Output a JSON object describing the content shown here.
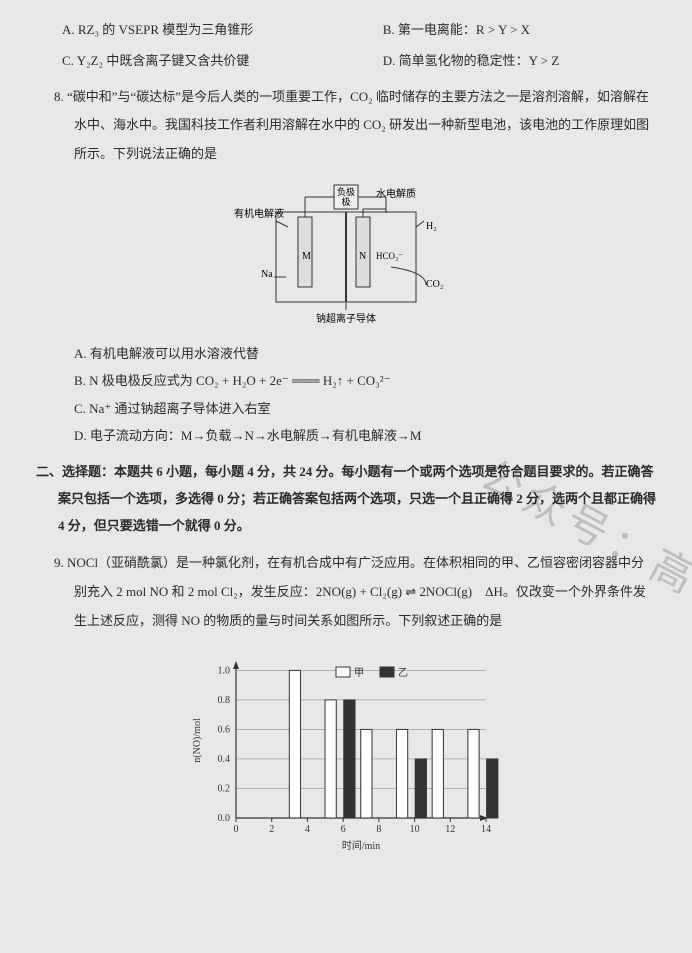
{
  "q7": {
    "A": "A. RZ₃ 的 VSEPR 模型为三角锥形",
    "B": "B. 第一电离能：R > Y > X",
    "C": "C. Y₂Z₂ 中既含离子键又含共价键",
    "D": "D. 简单氢化物的稳定性：Y > Z"
  },
  "q8": {
    "num": "8.",
    "stem": "“碳中和”与“碳达标”是今后人类的一项重要工作，CO₂ 临时储存的主要方法之一是溶剂溶解，如溶解在水中、海水中。我国科技工作者利用溶解在水中的 CO₂ 研发出一种新型电池，该电池的工作原理如图所示。下列说法正确的是",
    "diagram": {
      "labels": {
        "left_sol": "有机电解液",
        "load": "负极",
        "water_sol": "水电解质",
        "h2": "H₂",
        "M": "M",
        "N": "N",
        "hco3": "HCO₃⁻",
        "na": "Na",
        "co2": "CO₂",
        "bottom": "钠超离子导体"
      }
    },
    "A": "A. 有机电解液可以用水溶液代替",
    "B": "B. N 极电极反应式为 CO₂ + H₂O + 2e⁻ ═══ H₂↑ + CO₃²⁻",
    "C": "C. Na⁺ 通过钠超离子导体进入右室",
    "D": "D. 电子流动方向：M→负载→N→水电解质→有机电解液→M"
  },
  "section2": "二、选择题：本题共 6 小题，每小题 4 分，共 24 分。每小题有一个或两个选项是符合题目要求的。若正确答案只包括一个选项，多选得 0 分；若正确答案包括两个选项，只选一个且正确得 2 分，选两个且都正确得 4 分，但只要选错一个就得 0 分。",
  "q9": {
    "num": "9.",
    "stem": "NOCl（亚硝酰氯）是一种氯化剂，在有机合成中有广泛应用。在体积相同的甲、乙恒容密闭容器中分别充入 2 mol NO 和 2 mol Cl₂，发生反应：2NO(g) + Cl₂(g) ⇌ 2NOCl(g)　ΔH。仅改变一个外界条件发生上述反应，测得 NO 的物质的量与时间关系如图所示。下列叙述正确的是",
    "chart": {
      "type": "grouped-bar",
      "x_ticks": [
        0,
        2,
        4,
        6,
        8,
        10,
        12,
        14
      ],
      "x_label": "时间/min",
      "y_ticks": [
        0,
        0.2,
        0.4,
        0.6,
        0.8,
        1.0
      ],
      "y_label": "n(NO)/mol",
      "y_lim": [
        0,
        1.05
      ],
      "series": [
        {
          "name": "甲",
          "color": "#ffffff",
          "border": "#333333",
          "values": {
            "4": 1.0,
            "6": 0.8,
            "8": 0.6,
            "10": 0.6,
            "12": 0.6,
            "14": 0.6
          }
        },
        {
          "name": "乙",
          "color": "#333333",
          "border": "#333333",
          "values": {
            "6": 0.8,
            "10": 0.4,
            "14": 0.4
          }
        }
      ],
      "bar_width": 0.7,
      "background": "#e8e8e6",
      "grid_color": "#777777",
      "axis_color": "#333333",
      "font_size": 10,
      "legend_pos": "top-center"
    }
  },
  "watermark": "公众号：高"
}
